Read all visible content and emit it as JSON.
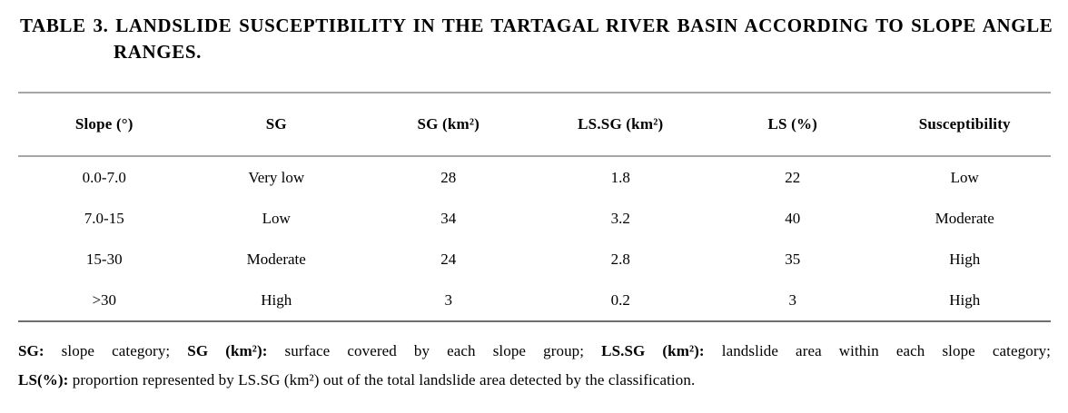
{
  "caption": {
    "line1": "TABLE 3. LANDSLIDE SUSCEPTIBILITY IN THE TARTAGAL RIVER BASIN ACCORDING TO SLOPE ANGLE",
    "line2": "RANGES."
  },
  "table": {
    "headers": [
      "Slope (°)",
      "SG",
      "SG (km²)",
      "LS.SG (km²)",
      "LS (%)",
      "Susceptibility"
    ],
    "rows": [
      [
        "0.0-7.0",
        "Very low",
        "28",
        "1.8",
        "22",
        "Low"
      ],
      [
        "7.0-15",
        "Low",
        "34",
        "3.2",
        "40",
        "Moderate"
      ],
      [
        "15-30",
        "Moderate",
        "24",
        "2.8",
        "35",
        "High"
      ],
      [
        ">30",
        "High",
        "3",
        "0.2",
        "3",
        "High"
      ]
    ]
  },
  "footnote": {
    "lines": [
      {
        "segments": [
          {
            "t": "SG:",
            "b": true
          },
          {
            "t": " slope category; ",
            "b": false
          },
          {
            "t": "SG (km²):",
            "b": true
          },
          {
            "t": " surface covered by each slope group; ",
            "b": false
          },
          {
            "t": "LS.SG (km²):",
            "b": true
          },
          {
            "t": " landslide area within each slope category;",
            "b": false
          }
        ]
      },
      {
        "segments": [
          {
            "t": "LS(%):",
            "b": true
          },
          {
            "t": " proportion represented by LS.SG (km²) out of the total landslide area detected by the classification.",
            "b": false
          }
        ]
      }
    ]
  },
  "colors": {
    "background": "#ffffff",
    "text": "#000000",
    "rule_light": "#a6a6a6",
    "rule_dark": "#6f6f6f"
  }
}
